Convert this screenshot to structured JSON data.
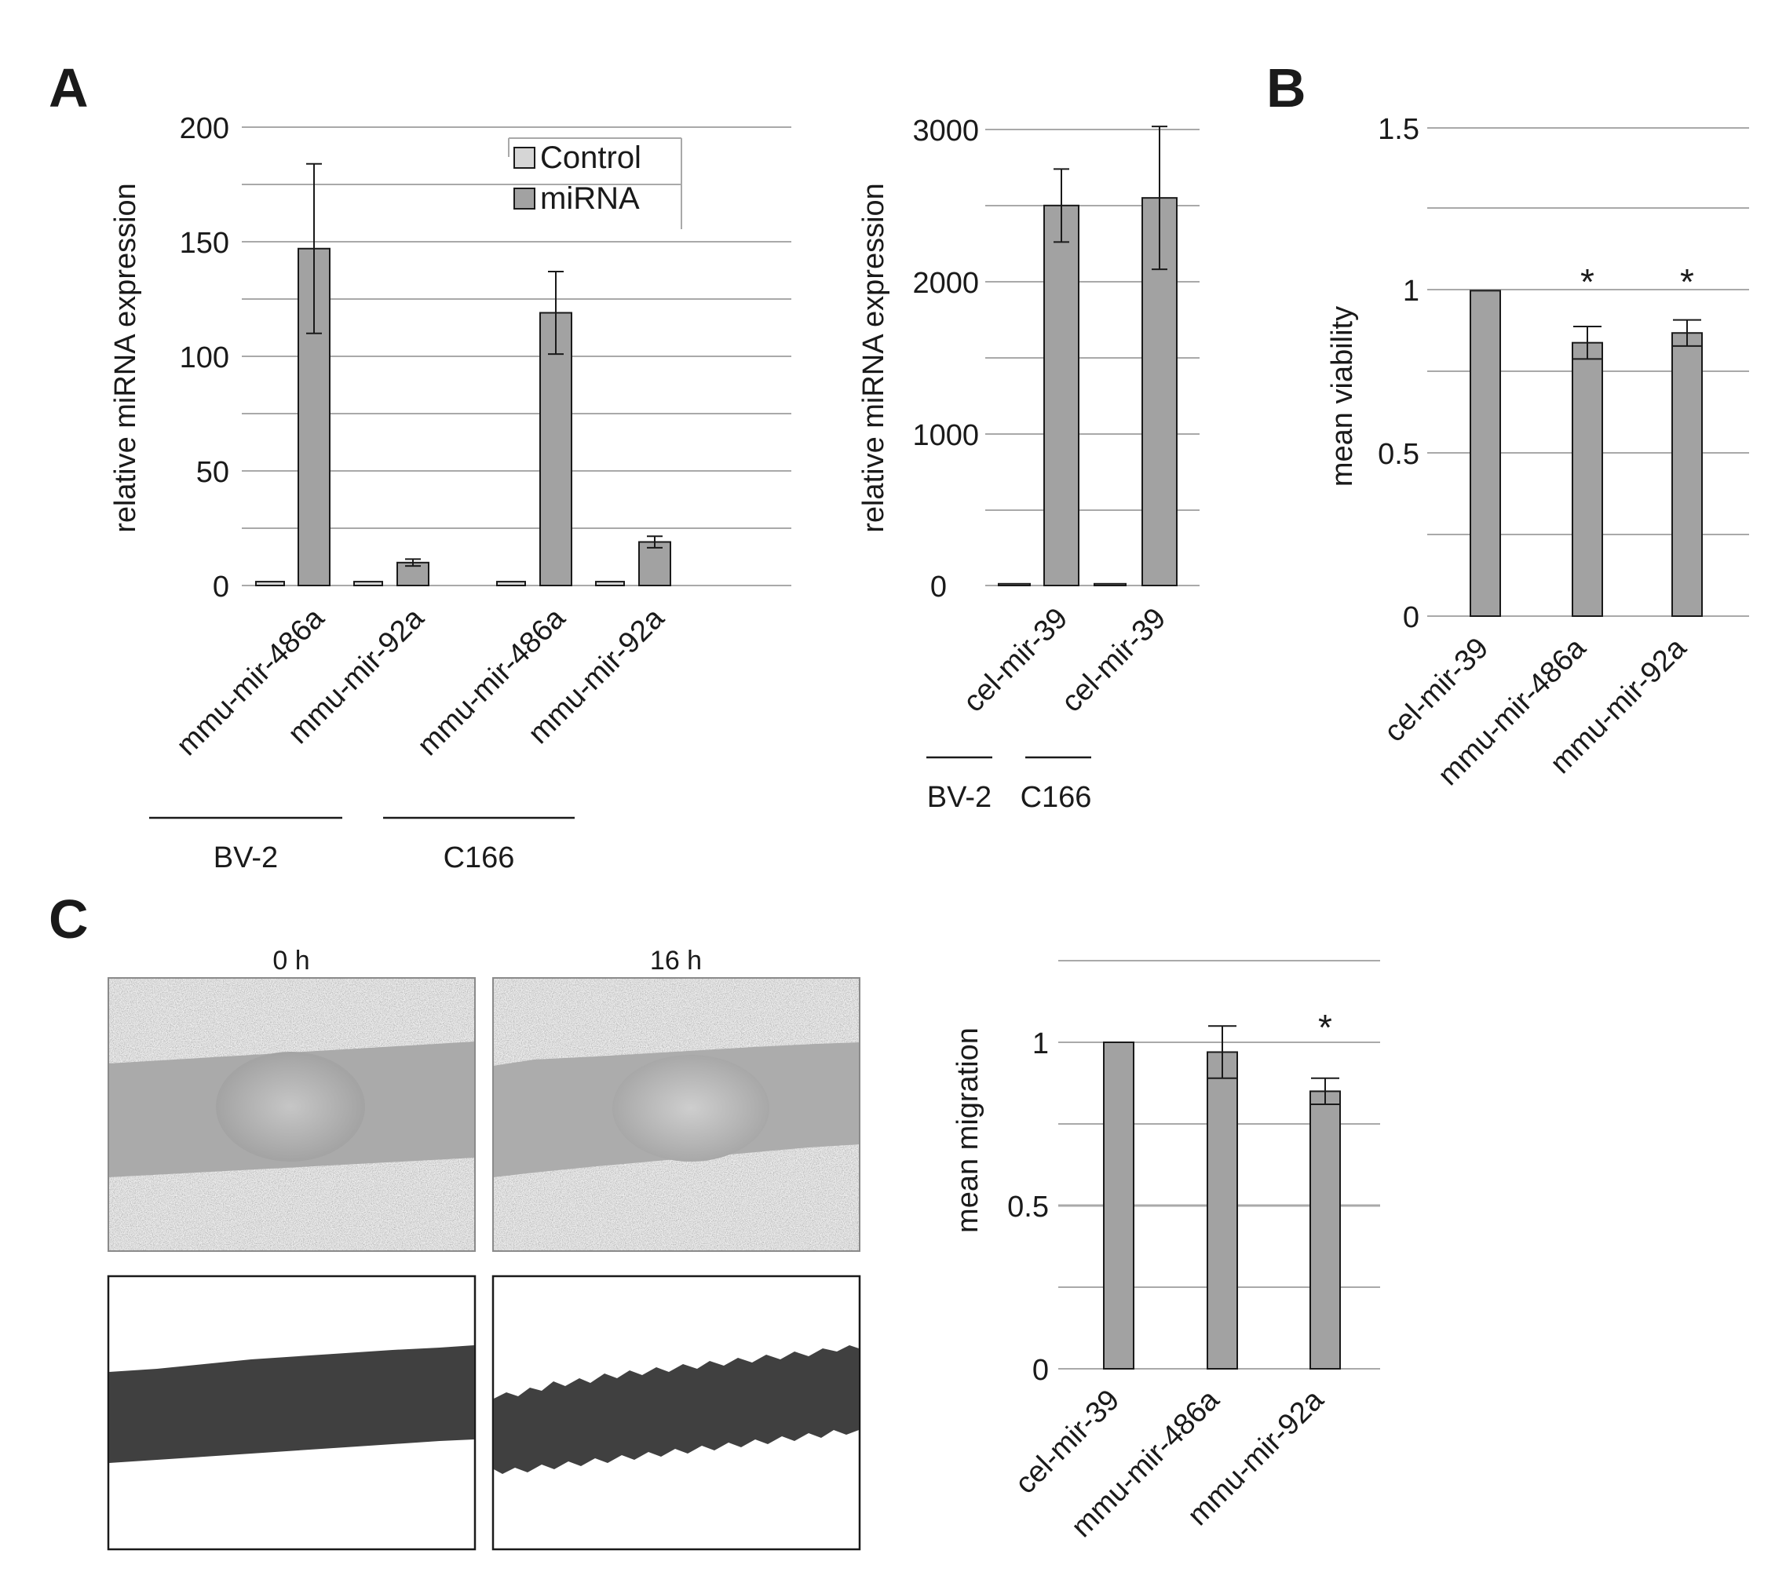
{
  "panel_labels": {
    "A": "A",
    "B": "B",
    "C": "C"
  },
  "legend": {
    "control": "Control",
    "mirna": "miRNA"
  },
  "colors": {
    "bar_mirna": "#a2a2a2",
    "bar_control": "#d6d6d6",
    "grid": "#a9a9a9",
    "ink": "#1a1a1a",
    "mask": "#404040"
  },
  "micrograph_labels": {
    "t0": "0 h",
    "t16": "16 h"
  },
  "chart_data": [
    {
      "id": "A1",
      "type": "bar",
      "ylabel": "relative miRNA expression",
      "ylim": [
        0,
        200
      ],
      "yticks": [
        0,
        50,
        100,
        150,
        200
      ],
      "categories": [
        "mmu-mir-486a",
        "mmu-mir-92a",
        "mmu-mir-486a",
        "mmu-mir-92a"
      ],
      "groups": [
        {
          "label": "BV-2",
          "categories": [
            0,
            1
          ]
        },
        {
          "label": "C166",
          "categories": [
            2,
            3
          ]
        }
      ],
      "series": [
        {
          "name": "Control",
          "values": [
            1,
            1,
            1,
            1
          ]
        },
        {
          "name": "miRNA",
          "values": [
            147,
            10,
            119,
            19
          ],
          "error": [
            37,
            1.5,
            18,
            2.5
          ]
        }
      ],
      "legend_position": "top-right",
      "grid": true
    },
    {
      "id": "A2",
      "type": "bar",
      "ylabel": "relative miRNA expression",
      "ylim": [
        0,
        3000
      ],
      "yticks": [
        0,
        1000,
        2000,
        3000
      ],
      "categories": [
        "cel-mir-39",
        "cel-mir-39"
      ],
      "groups": [
        {
          "label": "BV-2",
          "categories": [
            0
          ]
        },
        {
          "label": "C166",
          "categories": [
            1
          ]
        }
      ],
      "series": [
        {
          "name": "Control",
          "values": [
            1,
            1
          ]
        },
        {
          "name": "miRNA",
          "values": [
            2500,
            2550
          ],
          "error": [
            240,
            470
          ]
        }
      ],
      "grid": true
    },
    {
      "id": "B",
      "type": "bar",
      "ylabel": "mean viability",
      "ylim": [
        0,
        1.5
      ],
      "yticks": [
        0.0,
        0.5,
        1.0,
        1.5
      ],
      "categories": [
        "cel-mir-39",
        "mmu-mir-486a",
        "mmu-mir-92a"
      ],
      "values": [
        1.0,
        0.84,
        0.87
      ],
      "error": [
        0,
        0.05,
        0.04
      ],
      "significance": [
        "",
        "*",
        "*"
      ],
      "grid": true
    },
    {
      "id": "C",
      "type": "bar",
      "ylabel": "mean migration",
      "ylim": [
        0,
        1.0
      ],
      "yticks": [
        0.0,
        0.5,
        1.0
      ],
      "categories": [
        "cel-mir-39",
        "mmu-mir-486a",
        "mmu-mir-92a"
      ],
      "values": [
        1.0,
        0.97,
        0.85
      ],
      "error": [
        0,
        0.08,
        0.04
      ],
      "significance": [
        "",
        "",
        "*"
      ],
      "grid": true
    }
  ]
}
